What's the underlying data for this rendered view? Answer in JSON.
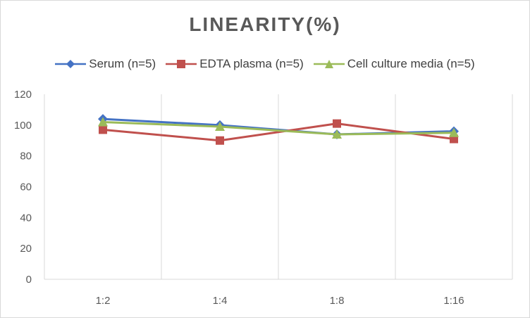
{
  "chart_data": {
    "type": "line",
    "title": "LINEARITY(%)",
    "xlabel": "",
    "ylabel": "",
    "categories": [
      "1:2",
      "1:4",
      "1:8",
      "1:16"
    ],
    "ylim": [
      0,
      120
    ],
    "yticks": [
      0,
      20,
      40,
      60,
      80,
      100,
      120
    ],
    "grid": "vertical",
    "legend_position": "top",
    "series": [
      {
        "name": "Serum (n=5)",
        "values": [
          104,
          100,
          94,
          96
        ],
        "color": "#4472c4",
        "marker": "diamond"
      },
      {
        "name": "EDTA plasma (n=5)",
        "values": [
          97,
          90,
          101,
          91
        ],
        "color": "#c0504d",
        "marker": "square"
      },
      {
        "name": "Cell culture media (n=5)",
        "values": [
          102,
          99,
          94,
          95
        ],
        "color": "#9bbb59",
        "marker": "triangle"
      }
    ]
  }
}
